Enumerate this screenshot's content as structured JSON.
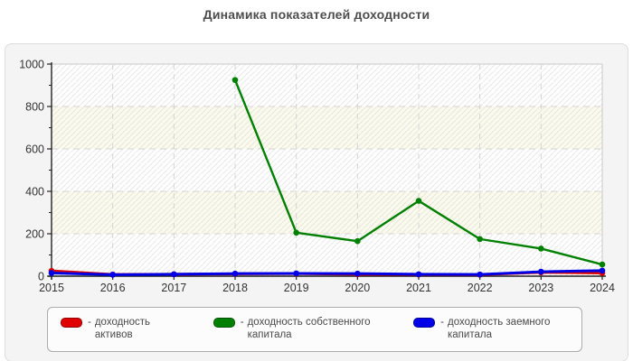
{
  "title": "Динамика показателей доходности",
  "chart_data": {
    "type": "line",
    "x": [
      2015,
      2016,
      2017,
      2018,
      2019,
      2020,
      2021,
      2022,
      2023,
      2024
    ],
    "series": [
      {
        "name": "доходность активов",
        "color": "#e00000",
        "values": [
          25,
          8,
          9,
          11,
          12,
          9,
          8,
          7,
          18,
          15
        ]
      },
      {
        "name": "доходность собственного капитала",
        "color": "#008000",
        "values": [
          null,
          null,
          null,
          925,
          205,
          165,
          355,
          175,
          130,
          55
        ]
      },
      {
        "name": "доходность заемного капитала",
        "color": "#0000e8",
        "values": [
          15,
          7,
          9,
          12,
          13,
          12,
          9,
          8,
          21,
          26
        ]
      }
    ],
    "ylim": [
      0,
      1000
    ],
    "y_ticks": [
      0,
      200,
      400,
      600,
      800,
      1000
    ],
    "xlabel": "",
    "ylabel": "",
    "grid": "dashed horizontal and vertical",
    "plot_background": "alternating 200-unit horizontal bands (white / pale yellow) with light diagonal hatching",
    "legend_position": "bottom"
  },
  "legend": {
    "items": [
      {
        "prefix": "-",
        "label": "доходность активов",
        "color": "#e00000"
      },
      {
        "prefix": "-",
        "label": "доходность собственного капитала",
        "color": "#008000"
      },
      {
        "prefix": "-",
        "label": "доходность заемного капитала",
        "color": "#0000e8"
      }
    ]
  },
  "colors": {
    "title_text": "#4d4d4d",
    "panel_bg": "#f4f4f4",
    "panel_border": "#dcdcdc",
    "axis": "#222222",
    "tick_label": "#333333",
    "gridline": "#d4d4d4",
    "band_white": "#ffffff",
    "band_yellow": "#fbfaee",
    "hatch_line": "#e9e9e9",
    "bottom_bar": "#1d3c78"
  }
}
